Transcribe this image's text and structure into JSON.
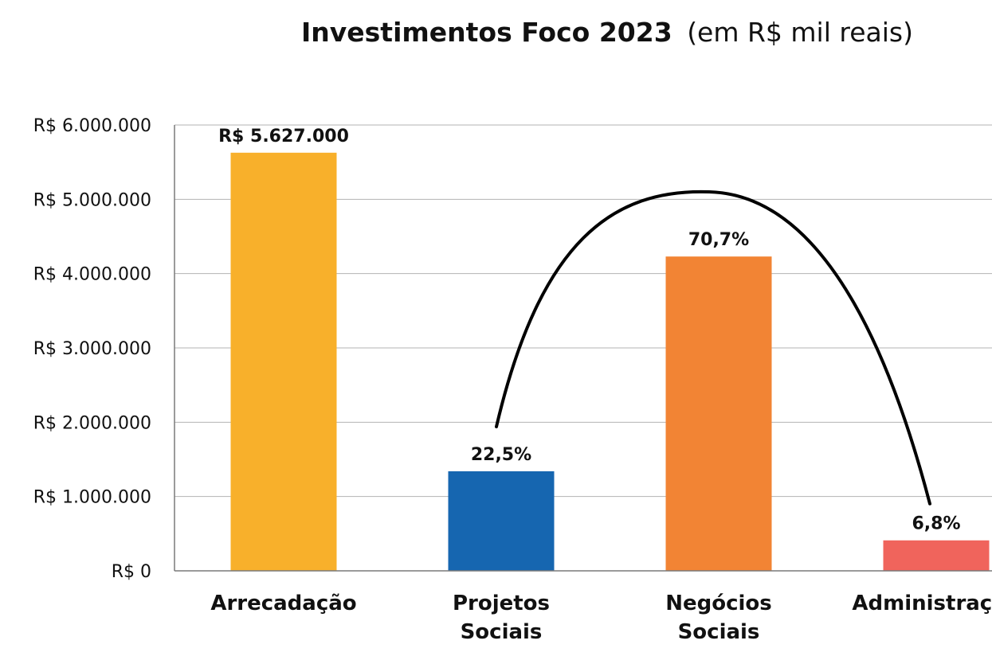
{
  "chart_data": {
    "type": "bar",
    "title": "Investimentos Foco 2023",
    "subtitle": "(em R$ mil reais)",
    "categories": [
      [
        "Arrecadação"
      ],
      [
        "Projetos",
        "Sociais"
      ],
      [
        "Negócios",
        "Sociais"
      ],
      [
        "Administração"
      ]
    ],
    "values": [
      5627000,
      1340000,
      4230000,
      410000
    ],
    "data_labels": [
      "R$ 5.627.000",
      "22,5%",
      "70,7%",
      "6,8%"
    ],
    "colors": [
      "#F8B02B",
      "#1666B0",
      "#F28434",
      "#F0645C"
    ],
    "ylim": [
      0,
      6000000
    ],
    "y_ticks": [
      {
        "value": 0,
        "label": "R$ 0"
      },
      {
        "value": 1000000,
        "label": "R$ 1.000.000"
      },
      {
        "value": 2000000,
        "label": "R$ 2.000.000"
      },
      {
        "value": 3000000,
        "label": "R$ 3.000.000"
      },
      {
        "value": 4000000,
        "label": "R$ 4.000.000"
      },
      {
        "value": 5000000,
        "label": "R$ 5.000.000"
      },
      {
        "value": 6000000,
        "label": "R$ 6.000.000"
      }
    ],
    "grid": true,
    "annotation": "arc linking Projetos Sociais, Negócios Sociais and Administração"
  }
}
